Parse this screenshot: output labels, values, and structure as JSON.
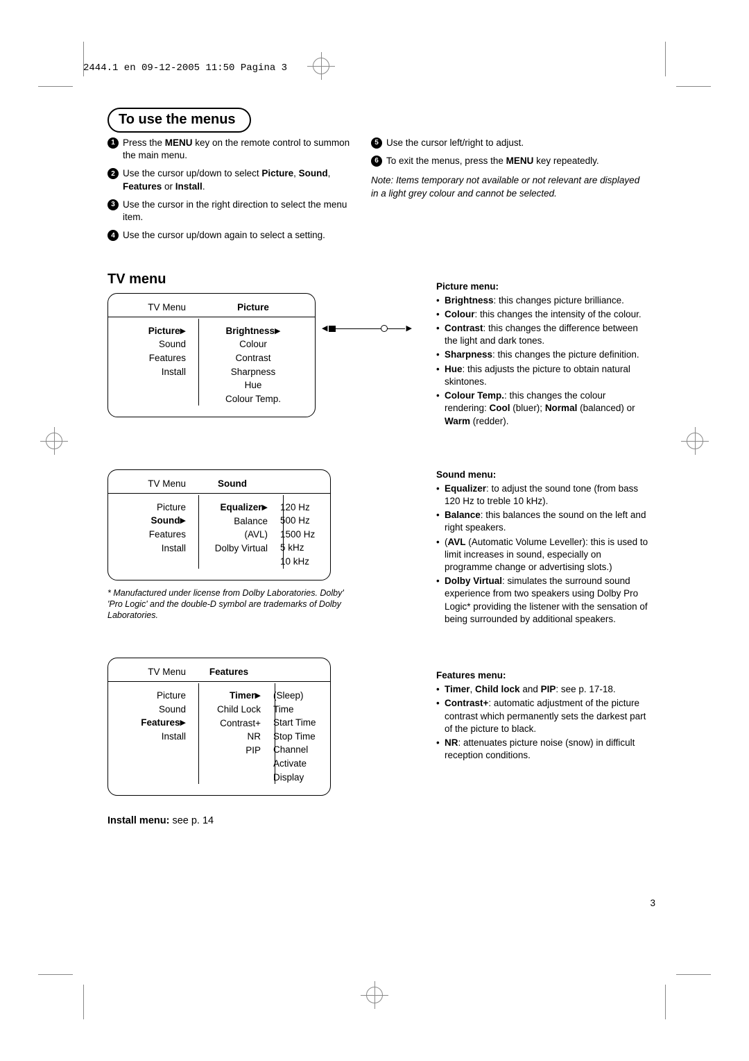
{
  "printHeader": "2444.1 en  09-12-2005  11:50  Pagina 3",
  "pageNumber": "3",
  "useMenus": {
    "heading": "To use the menus",
    "leftSteps": [
      {
        "n": "1",
        "pre": "Press the ",
        "b": "MENU",
        "post": " key on the remote control to summon the main menu."
      },
      {
        "n": "2",
        "pre": "Use the cursor up/down to select ",
        "b": "Picture",
        "post": ", ",
        "b2": "Sound",
        "post2": ", ",
        "b3": "Features",
        "post3": " or ",
        "b4": "Install",
        "post4": "."
      },
      {
        "n": "3",
        "pre": "Use the cursor in the right direction to select the menu item.",
        "b": "",
        "post": ""
      },
      {
        "n": "4",
        "pre": "Use the cursor up/down again to select a setting.",
        "b": "",
        "post": ""
      }
    ],
    "rightSteps": [
      {
        "n": "5",
        "pre": "Use the cursor left/right to adjust.",
        "b": "",
        "post": ""
      },
      {
        "n": "6",
        "pre": "To exit the menus, press the ",
        "b": "MENU",
        "post": " key repeatedly."
      }
    ],
    "note": "Note: Items temporary not available or not relevant are displayed in a light grey colour and cannot be selected."
  },
  "tvMenuHeading": "TV menu",
  "pictureCard": {
    "topLeft": "TV Menu",
    "topRight": "Picture",
    "left": [
      "Picture",
      "Sound",
      "Features",
      "Install"
    ],
    "leftBold": 0,
    "mid": [
      "Brightness",
      "Colour",
      "Contrast",
      "Sharpness",
      "Hue",
      "Colour Temp."
    ],
    "midBold": 0
  },
  "pictureMenu": {
    "title": "Picture menu:",
    "items": [
      {
        "b": "Brightness",
        "t": ": this changes picture brilliance."
      },
      {
        "b": "Colour",
        "t": ": this changes the intensity of the colour."
      },
      {
        "b": "Contrast",
        "t": ": this changes the difference between the light and dark tones."
      },
      {
        "b": "Sharpness",
        "t": ": this changes the picture definition."
      },
      {
        "b": "Hue",
        "t": ": this adjusts the picture to obtain natural skintones."
      },
      {
        "b": "Colour Temp.",
        "t": ": this changes the colour rendering: ",
        "extra": [
          [
            "Cool",
            " (bluer); "
          ],
          [
            "Normal",
            " (balanced) or "
          ],
          [
            "Warm",
            " (redder)."
          ]
        ]
      }
    ]
  },
  "soundCard": {
    "topLeft": "TV Menu",
    "topRight": "Sound",
    "left": [
      "Picture",
      "Sound",
      "Features",
      "Install"
    ],
    "leftBold": 1,
    "mid": [
      "Equalizer",
      "Balance",
      "(AVL)",
      "Dolby Virtual"
    ],
    "midBold": 0,
    "right": [
      "120 Hz",
      "500 Hz",
      "1500 Hz",
      "5 kHz",
      "10 kHz"
    ]
  },
  "soundFootnote": "* Manufactured under license from Dolby Laboratories. Dolby' 'Pro Logic' and the double-D symbol are trademarks of Dolby Laboratories.",
  "soundMenu": {
    "title": "Sound menu:",
    "items": [
      {
        "b": "Equalizer",
        "t": ": to adjust the sound tone (from bass 120 Hz to treble 10 kHz)."
      },
      {
        "b": "Balance",
        "t": ": this balances the sound on the left and right speakers."
      },
      {
        "b": "",
        "t": "(",
        "b2": "AVL",
        "t2": " (Automatic Volume Leveller): this is used to limit increases in sound, especially on programme change or advertising slots.)"
      },
      {
        "b": "Dolby Virtual",
        "t": ": simulates the surround sound experience from two speakers using Dolby Pro Logic* providing the listener with the sensation of being surrounded by additional speakers."
      }
    ]
  },
  "featuresCard": {
    "topLeft": "TV Menu",
    "topRight": "Features",
    "left": [
      "Picture",
      "Sound",
      "Features",
      "Install"
    ],
    "leftBold": 2,
    "mid": [
      "Timer",
      "Child Lock",
      "Contrast+",
      "NR",
      "PIP"
    ],
    "midBold": 0,
    "right": [
      "(Sleep)",
      "Time",
      "Start Time",
      "Stop Time",
      "Channel",
      "Activate",
      "Display"
    ]
  },
  "featuresMenu": {
    "title": "Features menu:",
    "items": [
      {
        "multi": [
          [
            "Timer",
            ""
          ],
          [
            ", ",
            ""
          ],
          [
            "Child lock",
            ""
          ],
          [
            " and ",
            ""
          ],
          [
            "PIP",
            ""
          ],
          [
            ": see p. 17-18.",
            ""
          ]
        ]
      },
      {
        "b": "Contrast+",
        "t": ": automatic adjustment of the picture contrast which permanently sets the darkest part of the picture to black."
      },
      {
        "b": "NR",
        "t": ": attenuates picture noise (snow) in difficult reception conditions."
      }
    ]
  },
  "installLine": {
    "b": "Install menu:",
    "t": " see p. 14"
  }
}
